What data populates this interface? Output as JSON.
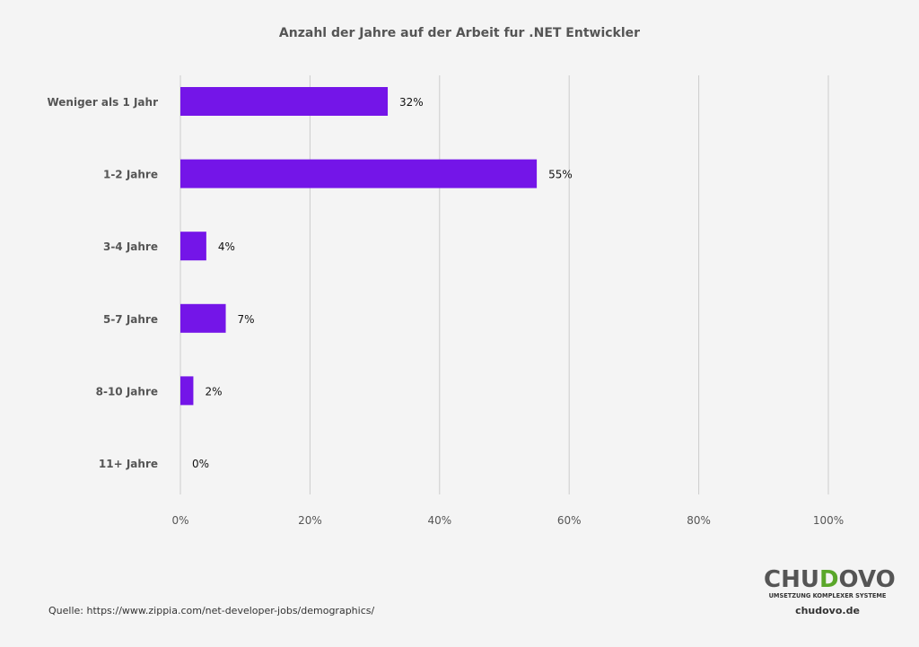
{
  "chart_data": {
    "type": "bar",
    "orientation": "horizontal",
    "title": "Anzahl der Jahre auf der Arbeit fur .NET Entwickler",
    "categories": [
      "Weniger als 1 Jahr",
      "1-2 Jahre",
      "3-4 Jahre",
      "5-7 Jahre",
      "8-10 Jahre",
      "11+ Jahre"
    ],
    "values": [
      32,
      55,
      4,
      7,
      2,
      0
    ],
    "value_labels": [
      "32%",
      "55%",
      "4%",
      "7%",
      "2%",
      "0%"
    ],
    "x_ticks": [
      "0%",
      "20%",
      "40%",
      "60%",
      "80%",
      "100%"
    ],
    "xlim": [
      0,
      100
    ],
    "grid": true,
    "bar_color": "#7415e8",
    "grid_color": "#cccccc"
  },
  "footer": {
    "source": "Quelle: https://www.zippia.com/net-developer-jobs/demographics/",
    "logo_part1": "CHU",
    "logo_part2": "D",
    "logo_part3": "OVO",
    "logo_tagline": "UMSETZUNG KOMPLEXER SYSTEME",
    "website": "chudovo.de"
  }
}
